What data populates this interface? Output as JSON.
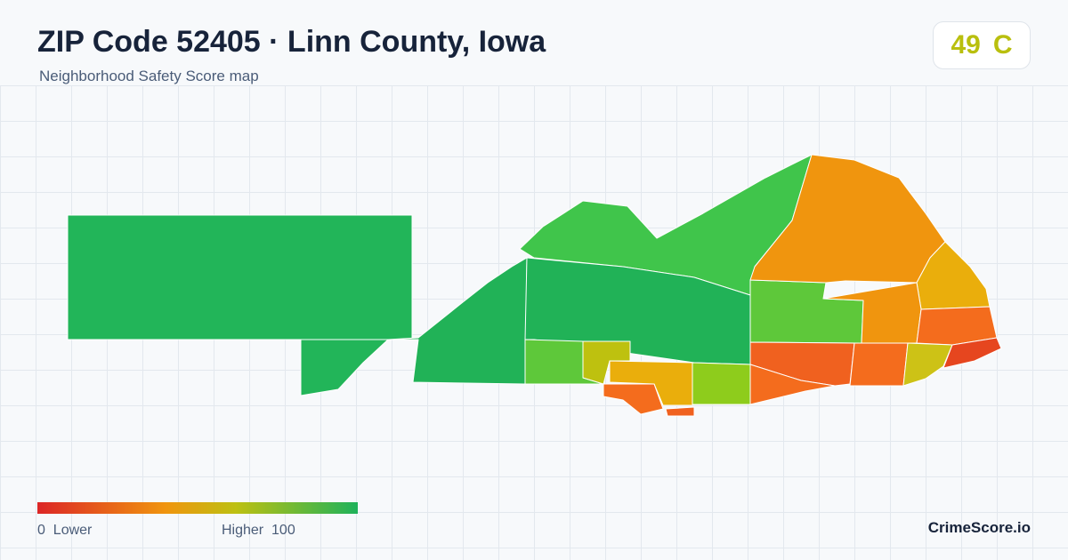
{
  "header": {
    "title": "ZIP Code 52405 · Linn County, Iowa",
    "subtitle": "Neighborhood Safety Score map"
  },
  "score": {
    "value": "49",
    "grade": "C",
    "color": "#b9bf0e"
  },
  "legend": {
    "low_label": "0  Lower",
    "high_label": "Higher  100",
    "min": 0,
    "max": 100,
    "gradient_colors": [
      "#dc2626",
      "#f0950e",
      "#bdc012",
      "#1fb25a"
    ]
  },
  "brand": "CrimeScore.io",
  "colors": {
    "background": "#f7f9fb",
    "grid": "#e3e8ee",
    "title": "#17233a",
    "muted": "#4a5c78"
  },
  "map": {
    "region_colors": {
      "west": "#22b559",
      "center_green": "#21b257",
      "north_green": "#40c54b",
      "mid_green": "#5ec83a",
      "olive": "#bec10f",
      "orange": "#f0950e",
      "amber": "#eaae0c",
      "red_orange": "#f0611f",
      "deep_orange": "#f46c1d",
      "red": "#e6461f",
      "yellow_green": "#8ecc1c",
      "lime": "#cdc216"
    }
  }
}
